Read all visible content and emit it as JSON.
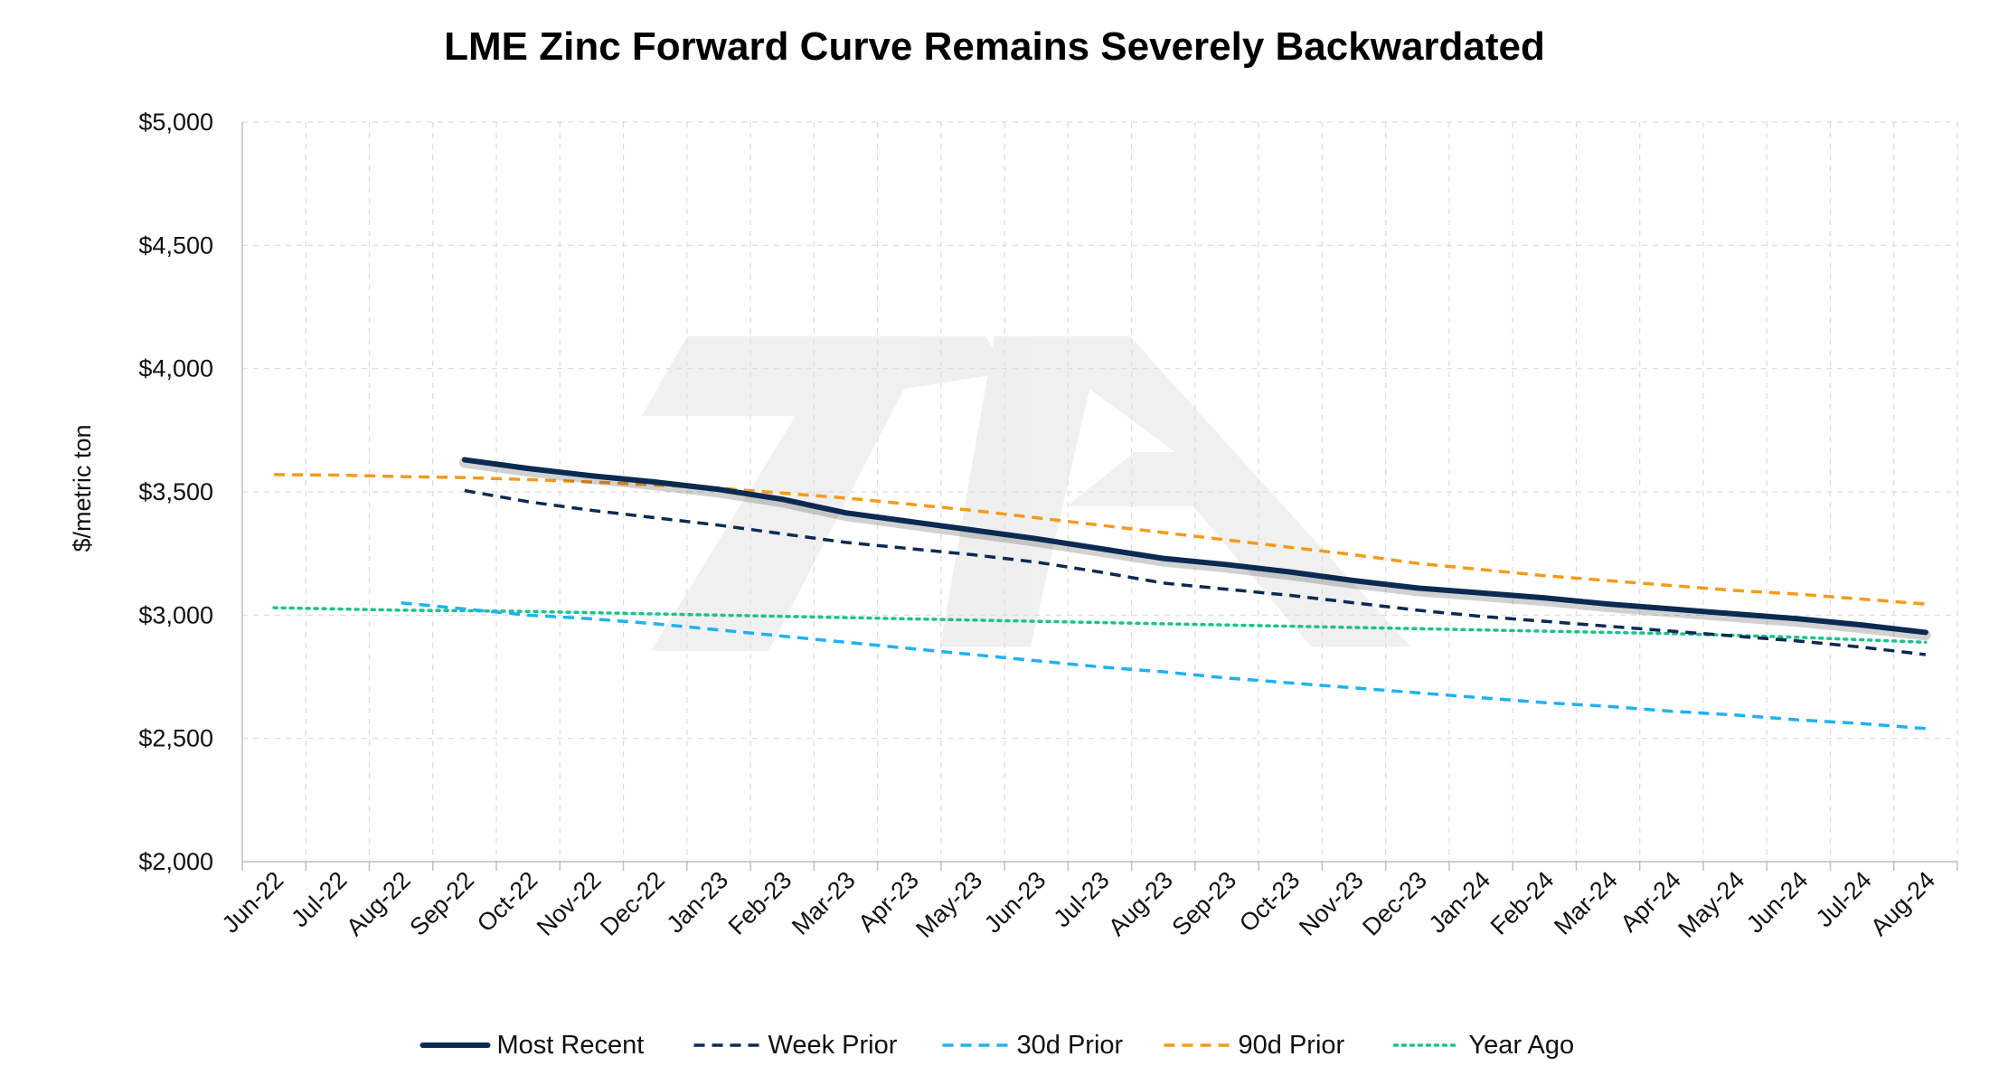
{
  "chart_data": {
    "type": "line",
    "title": "LME Zinc Forward Curve Remains Severely Backwardated",
    "ylabel": "$/metric ton",
    "xlabel": "",
    "ylim": [
      2000,
      5000
    ],
    "y_ticks": [
      2000,
      2500,
      3000,
      3500,
      4000,
      4500,
      5000
    ],
    "y_tick_labels": [
      "$2,000",
      "$2,500",
      "$3,000",
      "$3,500",
      "$4,000",
      "$4,500",
      "$5,000"
    ],
    "categories": [
      "Jun-22",
      "Jul-22",
      "Aug-22",
      "Sep-22",
      "Oct-22",
      "Nov-22",
      "Dec-22",
      "Jan-23",
      "Feb-23",
      "Mar-23",
      "Apr-23",
      "May-23",
      "Jun-23",
      "Jul-23",
      "Aug-23",
      "Sep-23",
      "Oct-23",
      "Nov-23",
      "Dec-23",
      "Jan-24",
      "Feb-24",
      "Mar-24",
      "Apr-24",
      "May-24",
      "Jun-24",
      "Jul-24",
      "Aug-24"
    ],
    "grid": true,
    "legend_position": "bottom",
    "watermark": "7A",
    "series": [
      {
        "name": "Most Recent",
        "style": "solid",
        "color": "#0b2a52",
        "points": [
          {
            "x": "Sep-22",
            "y": 3630
          },
          {
            "x": "Oct-22",
            "y": 3595
          },
          {
            "x": "Nov-22",
            "y": 3565
          },
          {
            "x": "Dec-22",
            "y": 3540
          },
          {
            "x": "Jan-23",
            "y": 3510
          },
          {
            "x": "Feb-23",
            "y": 3470
          },
          {
            "x": "Mar-23",
            "y": 3415
          },
          {
            "x": "Apr-23",
            "y": 3380
          },
          {
            "x": "May-23",
            "y": 3345
          },
          {
            "x": "Jun-23",
            "y": 3310
          },
          {
            "x": "Jul-23",
            "y": 3270
          },
          {
            "x": "Aug-23",
            "y": 3230
          },
          {
            "x": "Sep-23",
            "y": 3205
          },
          {
            "x": "Oct-23",
            "y": 3175
          },
          {
            "x": "Nov-23",
            "y": 3140
          },
          {
            "x": "Dec-23",
            "y": 3110
          },
          {
            "x": "Jan-24",
            "y": 3090
          },
          {
            "x": "Feb-24",
            "y": 3070
          },
          {
            "x": "Mar-24",
            "y": 3045
          },
          {
            "x": "Apr-24",
            "y": 3025
          },
          {
            "x": "May-24",
            "y": 3005
          },
          {
            "x": "Jun-24",
            "y": 2985
          },
          {
            "x": "Jul-24",
            "y": 2960
          },
          {
            "x": "Aug-24",
            "y": 2930
          }
        ]
      },
      {
        "name": "Week Prior",
        "style": "dashed",
        "color": "#0b2a52",
        "points": [
          {
            "x": "Sep-22",
            "y": 3505
          },
          {
            "x": "Oct-22",
            "y": 3460
          },
          {
            "x": "Nov-22",
            "y": 3425
          },
          {
            "x": "Dec-22",
            "y": 3395
          },
          {
            "x": "Jan-23",
            "y": 3365
          },
          {
            "x": "Feb-23",
            "y": 3330
          },
          {
            "x": "Mar-23",
            "y": 3295
          },
          {
            "x": "Apr-23",
            "y": 3270
          },
          {
            "x": "May-23",
            "y": 3245
          },
          {
            "x": "Jun-23",
            "y": 3215
          },
          {
            "x": "Jul-23",
            "y": 3175
          },
          {
            "x": "Aug-23",
            "y": 3130
          },
          {
            "x": "Sep-23",
            "y": 3105
          },
          {
            "x": "Oct-23",
            "y": 3080
          },
          {
            "x": "Nov-23",
            "y": 3050
          },
          {
            "x": "Dec-23",
            "y": 3020
          },
          {
            "x": "Jan-24",
            "y": 2995
          },
          {
            "x": "Feb-24",
            "y": 2975
          },
          {
            "x": "Mar-24",
            "y": 2955
          },
          {
            "x": "Apr-24",
            "y": 2935
          },
          {
            "x": "May-24",
            "y": 2915
          },
          {
            "x": "Jun-24",
            "y": 2895
          },
          {
            "x": "Jul-24",
            "y": 2870
          },
          {
            "x": "Aug-24",
            "y": 2840
          }
        ]
      },
      {
        "name": "30d Prior",
        "style": "dashed",
        "color": "#1fb2f2",
        "points": [
          {
            "x": "Aug-22",
            "y": 3050
          },
          {
            "x": "Sep-22",
            "y": 3025
          },
          {
            "x": "Oct-22",
            "y": 3000
          },
          {
            "x": "Nov-22",
            "y": 2985
          },
          {
            "x": "Dec-22",
            "y": 2965
          },
          {
            "x": "Jan-23",
            "y": 2940
          },
          {
            "x": "Feb-23",
            "y": 2915
          },
          {
            "x": "Mar-23",
            "y": 2890
          },
          {
            "x": "Apr-23",
            "y": 2865
          },
          {
            "x": "May-23",
            "y": 2840
          },
          {
            "x": "Jun-23",
            "y": 2815
          },
          {
            "x": "Jul-23",
            "y": 2790
          },
          {
            "x": "Aug-23",
            "y": 2770
          },
          {
            "x": "Sep-23",
            "y": 2745
          },
          {
            "x": "Oct-23",
            "y": 2725
          },
          {
            "x": "Nov-23",
            "y": 2705
          },
          {
            "x": "Dec-23",
            "y": 2685
          },
          {
            "x": "Jan-24",
            "y": 2665
          },
          {
            "x": "Feb-24",
            "y": 2645
          },
          {
            "x": "Mar-24",
            "y": 2630
          },
          {
            "x": "Apr-24",
            "y": 2610
          },
          {
            "x": "May-24",
            "y": 2595
          },
          {
            "x": "Jun-24",
            "y": 2575
          },
          {
            "x": "Jul-24",
            "y": 2560
          },
          {
            "x": "Aug-24",
            "y": 2540
          }
        ]
      },
      {
        "name": "90d Prior",
        "style": "dashed",
        "color": "#f59a1b",
        "points": [
          {
            "x": "Jun-22",
            "y": 3570
          },
          {
            "x": "Jul-22",
            "y": 3568
          },
          {
            "x": "Aug-22",
            "y": 3562
          },
          {
            "x": "Sep-22",
            "y": 3558
          },
          {
            "x": "Oct-22",
            "y": 3550
          },
          {
            "x": "Nov-22",
            "y": 3540
          },
          {
            "x": "Dec-22",
            "y": 3528
          },
          {
            "x": "Jan-23",
            "y": 3515
          },
          {
            "x": "Feb-23",
            "y": 3495
          },
          {
            "x": "Mar-23",
            "y": 3475
          },
          {
            "x": "Apr-23",
            "y": 3450
          },
          {
            "x": "May-23",
            "y": 3425
          },
          {
            "x": "Jun-23",
            "y": 3395
          },
          {
            "x": "Jul-23",
            "y": 3365
          },
          {
            "x": "Aug-23",
            "y": 3335
          },
          {
            "x": "Sep-23",
            "y": 3305
          },
          {
            "x": "Oct-23",
            "y": 3275
          },
          {
            "x": "Nov-23",
            "y": 3245
          },
          {
            "x": "Dec-23",
            "y": 3210
          },
          {
            "x": "Jan-24",
            "y": 3185
          },
          {
            "x": "Feb-24",
            "y": 3160
          },
          {
            "x": "Mar-24",
            "y": 3140
          },
          {
            "x": "Apr-24",
            "y": 3120
          },
          {
            "x": "May-24",
            "y": 3100
          },
          {
            "x": "Jun-24",
            "y": 3085
          },
          {
            "x": "Jul-24",
            "y": 3065
          },
          {
            "x": "Aug-24",
            "y": 3045
          }
        ]
      },
      {
        "name": "Year Ago",
        "style": "dotted",
        "color": "#1ec28b",
        "points": [
          {
            "x": "Jun-22",
            "y": 3030
          },
          {
            "x": "Jul-22",
            "y": 3025
          },
          {
            "x": "Aug-22",
            "y": 3020
          },
          {
            "x": "Sep-22",
            "y": 3018
          },
          {
            "x": "Oct-22",
            "y": 3015
          },
          {
            "x": "Nov-22",
            "y": 3010
          },
          {
            "x": "Dec-22",
            "y": 3005
          },
          {
            "x": "Jan-23",
            "y": 3000
          },
          {
            "x": "Feb-23",
            "y": 2995
          },
          {
            "x": "Mar-23",
            "y": 2990
          },
          {
            "x": "Apr-23",
            "y": 2985
          },
          {
            "x": "May-23",
            "y": 2980
          },
          {
            "x": "Jun-23",
            "y": 2975
          },
          {
            "x": "Jul-23",
            "y": 2970
          },
          {
            "x": "Aug-23",
            "y": 2965
          },
          {
            "x": "Sep-23",
            "y": 2960
          },
          {
            "x": "Oct-23",
            "y": 2955
          },
          {
            "x": "Nov-23",
            "y": 2950
          },
          {
            "x": "Dec-23",
            "y": 2945
          },
          {
            "x": "Jan-24",
            "y": 2940
          },
          {
            "x": "Feb-24",
            "y": 2935
          },
          {
            "x": "Mar-24",
            "y": 2930
          },
          {
            "x": "Apr-24",
            "y": 2925
          },
          {
            "x": "May-24",
            "y": 2918
          },
          {
            "x": "Jun-24",
            "y": 2910
          },
          {
            "x": "Jul-24",
            "y": 2900
          },
          {
            "x": "Aug-24",
            "y": 2890
          }
        ]
      }
    ]
  }
}
